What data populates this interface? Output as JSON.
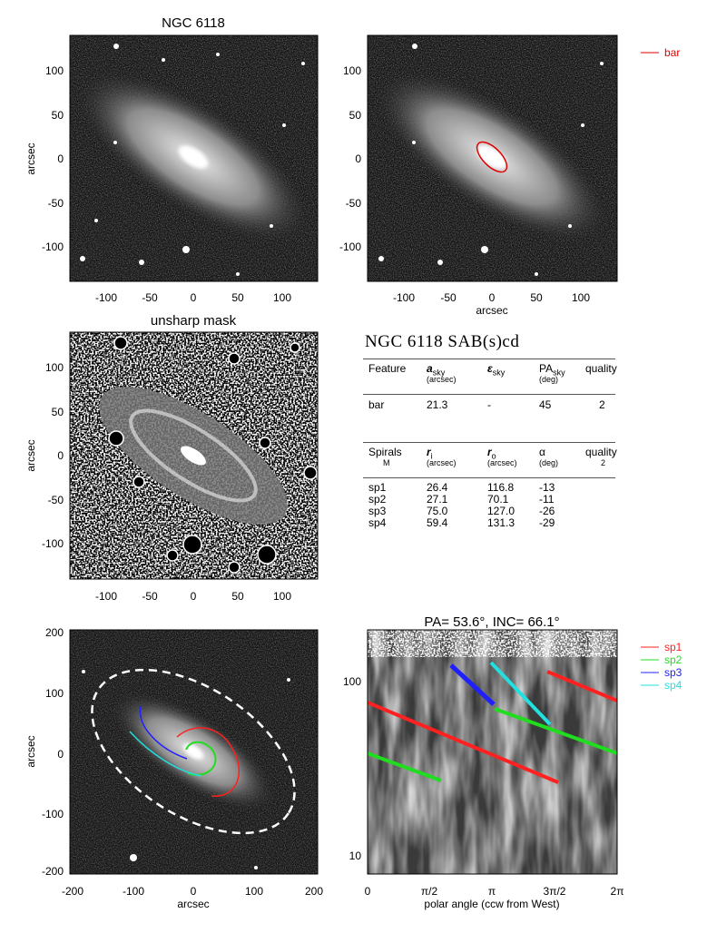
{
  "galaxy": "NGC 6118",
  "panels": {
    "p1": {
      "title": "NGC 6118",
      "ylabel": "arcsec",
      "xticks": [
        "-100",
        "-50",
        "0",
        "50",
        "100"
      ],
      "yticks": [
        "100",
        "50",
        "0",
        "-50",
        "-100"
      ]
    },
    "p2": {
      "xlabel": "arcsec",
      "xticks": [
        "-100",
        "-50",
        "0",
        "50",
        "100"
      ],
      "yticks": [
        "100",
        "50",
        "0",
        "-50",
        "-100"
      ],
      "legend": "bar"
    },
    "p3": {
      "title": "unsharp mask",
      "ylabel": "arcsec",
      "xticks": [
        "-100",
        "-50",
        "0",
        "50",
        "100"
      ],
      "yticks": [
        "100",
        "50",
        "0",
        "-50",
        "-100"
      ]
    },
    "p5": {
      "xlabel": "arcsec",
      "ylabel": "arcsec",
      "xticks": [
        "-200",
        "-100",
        "0",
        "100",
        "200"
      ],
      "yticks": [
        "200",
        "100",
        "0",
        "-100",
        "-200"
      ]
    },
    "p6": {
      "title": "PA=  53.6°, INC=  66.1°",
      "xlabel": "polar angle (ccw from West)",
      "xticks": [
        "0",
        "π/2",
        "π",
        "3π/2",
        "2π"
      ],
      "yticks": [
        "100",
        "10"
      ]
    }
  },
  "table": {
    "heading": "NGC 6118  SAB(s)cd",
    "bar_header": {
      "c1": "Feature",
      "c2": "a",
      "c2sub": "sky",
      "c2unit": "(arcsec)",
      "c3": "ε",
      "c3sub": "sky",
      "c4": "PA",
      "c4sub": "sky",
      "c4unit": "(deg)",
      "c5": "quality"
    },
    "bar_row": {
      "feature": "bar",
      "a": "21.3",
      "eps": "-",
      "pa": "45",
      "quality": "2"
    },
    "sp_header": {
      "c1": "Spirals",
      "c1b": "M",
      "c2": "r",
      "c2sub": "i",
      "c2unit": "(arcsec)",
      "c3": "r",
      "c3sub": "o",
      "c3unit": "(arcsec)",
      "c4": "α",
      "c4unit": "(deg)",
      "c5": "quality",
      "c5b": "2"
    },
    "sp_rows": [
      {
        "name": "sp1",
        "ri": "26.4",
        "ro": "116.8",
        "alpha": "-13"
      },
      {
        "name": "sp2",
        "ri": "27.1",
        "ro": "70.1",
        "alpha": "-11"
      },
      {
        "name": "sp3",
        "ri": "75.0",
        "ro": "127.0",
        "alpha": "-26"
      },
      {
        "name": "sp4",
        "ri": "59.4",
        "ro": "131.3",
        "alpha": "-29"
      }
    ]
  },
  "legend": [
    {
      "name": "sp1",
      "color": "#ff2020"
    },
    {
      "name": "sp2",
      "color": "#20dd20"
    },
    {
      "name": "sp3",
      "color": "#2020ff"
    },
    {
      "name": "sp4",
      "color": "#20e0e0"
    }
  ],
  "bar_color": "#e00000"
}
